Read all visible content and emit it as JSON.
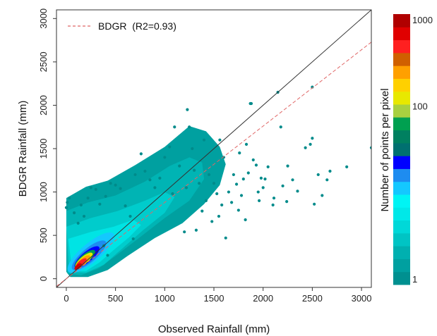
{
  "chart_data": {
    "type": "scatter",
    "title": "",
    "xlabel": "Observed Rainfall (mm)",
    "ylabel": "BDGR Rainfall (mm)",
    "xlim": [
      -100,
      3100
    ],
    "ylim": [
      -100,
      3100
    ],
    "xticks": [
      0,
      500,
      1000,
      1500,
      2000,
      2500,
      3000
    ],
    "yticks": [
      0,
      500,
      1000,
      1500,
      2000,
      2500,
      3000
    ],
    "xtick_labels": [
      "0",
      "500",
      "1000",
      "1500",
      "2000",
      "2500",
      "3000"
    ],
    "ytick_labels": [
      "0",
      "500",
      "1000",
      "1500",
      "2000",
      "2500",
      "3000"
    ],
    "grid": false,
    "legend": {
      "position": "top-left",
      "entries": [
        {
          "label": "BDGR  (R2=0.93)",
          "style": "dashed",
          "color": "#e06666"
        }
      ]
    },
    "reference_lines": [
      {
        "kind": "1:1",
        "slope": 1.0,
        "intercept": 0,
        "color": "#333333",
        "style": "solid"
      },
      {
        "kind": "fit",
        "slope": 0.88,
        "intercept": 0,
        "color": "#e06666",
        "style": "dashed"
      }
    ],
    "density_color_scale": {
      "title": "Number of points per pixel",
      "labels": [
        "1000",
        "100",
        "1"
      ],
      "scale": "log",
      "colors": [
        "#009090",
        "#00a0a0",
        "#00b0b0",
        "#00c4c4",
        "#00d8d8",
        "#00e8e8",
        "#00f4f4",
        "#14c8ff",
        "#1e8cf0",
        "#0000ff",
        "#007070",
        "#008060",
        "#00a050",
        "#a8d040",
        "#e8e800",
        "#ffd000",
        "#ffa000",
        "#d06000",
        "#ff2020",
        "#e00000",
        "#b00000"
      ]
    },
    "outlier_points": [
      [
        3100,
        1510
      ],
      [
        2850,
        1290
      ],
      [
        2680,
        1240
      ],
      [
        2650,
        1140
      ],
      [
        2600,
        960
      ],
      [
        2560,
        1200
      ],
      [
        2520,
        860
      ],
      [
        2500,
        1620
      ],
      [
        2500,
        2210
      ],
      [
        2480,
        1550
      ],
      [
        2430,
        1510
      ],
      [
        2350,
        1010
      ],
      [
        2300,
        1140
      ],
      [
        2250,
        1300
      ],
      [
        2240,
        890
      ],
      [
        2200,
        1070
      ],
      [
        2180,
        1750
      ],
      [
        2150,
        2150
      ],
      [
        2110,
        930
      ],
      [
        2100,
        850
      ],
      [
        2050,
        1290
      ],
      [
        2020,
        1150
      ],
      [
        2000,
        1050
      ],
      [
        1980,
        1160
      ],
      [
        1960,
        900
      ],
      [
        1950,
        1000
      ],
      [
        1930,
        1310
      ],
      [
        1900,
        1370
      ],
      [
        1880,
        2020
      ],
      [
        1870,
        2020
      ],
      [
        1850,
        1220
      ],
      [
        1830,
        1550
      ],
      [
        1820,
        680
      ],
      [
        1800,
        1150
      ],
      [
        1780,
        960
      ],
      [
        1760,
        1450
      ],
      [
        1750,
        790
      ],
      [
        1730,
        1090
      ],
      [
        1700,
        1200
      ],
      [
        1680,
        880
      ],
      [
        1650,
        1000
      ],
      [
        1620,
        470
      ],
      [
        1600,
        1400
      ],
      [
        1580,
        850
      ],
      [
        1560,
        1600
      ],
      [
        1550,
        720
      ],
      [
        1530,
        980
      ],
      [
        1500,
        1100
      ],
      [
        1480,
        660
      ],
      [
        1450,
        1200
      ],
      [
        1420,
        900
      ],
      [
        1400,
        1600
      ],
      [
        1380,
        780
      ],
      [
        1350,
        1100
      ],
      [
        1320,
        560
      ],
      [
        1300,
        1250
      ],
      [
        1280,
        1500
      ],
      [
        1250,
        1750
      ],
      [
        1230,
        1950
      ],
      [
        1220,
        1050
      ],
      [
        1200,
        540
      ],
      [
        1150,
        1300
      ],
      [
        1100,
        1750
      ],
      [
        1080,
        980
      ],
      [
        1050,
        1520
      ],
      [
        1000,
        1400
      ],
      [
        950,
        1160
      ],
      [
        900,
        1050
      ],
      [
        850,
        1140
      ],
      [
        800,
        1240
      ],
      [
        760,
        1440
      ],
      [
        700,
        1200
      ],
      [
        680,
        460
      ],
      [
        650,
        720
      ],
      [
        600,
        840
      ],
      [
        550,
        1040
      ],
      [
        500,
        1080
      ],
      [
        450,
        1100
      ],
      [
        420,
        270
      ],
      [
        400,
        950
      ],
      [
        380,
        380
      ],
      [
        340,
        860
      ],
      [
        300,
        1030
      ],
      [
        250,
        1050
      ],
      [
        220,
        930
      ],
      [
        180,
        720
      ],
      [
        150,
        850
      ],
      [
        120,
        640
      ],
      [
        80,
        760
      ],
      [
        30,
        930
      ],
      [
        10,
        880
      ],
      [
        0,
        820
      ]
    ]
  }
}
